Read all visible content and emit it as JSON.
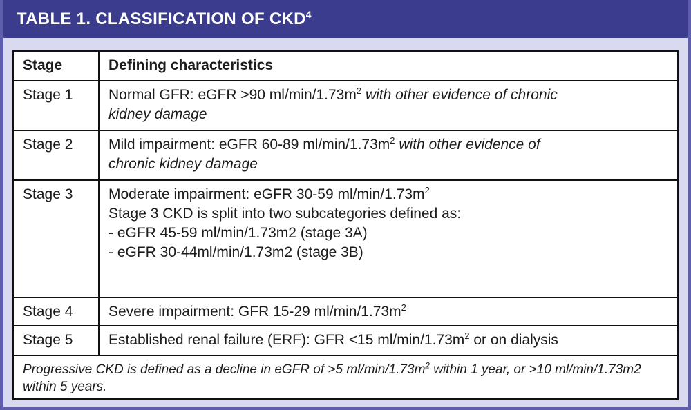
{
  "colors": {
    "banner_bg": "#3b3c8e",
    "frame": "#5e5eac",
    "page_bg": "#d9d9ef",
    "table_border": "#111111",
    "banner_text": "#ffffff"
  },
  "banner": {
    "title": "TABLE 1. CLASSIFICATION OF CKD",
    "superscript": "4"
  },
  "table": {
    "headers": [
      "Stage",
      "Defining characteristics"
    ],
    "rows": [
      {
        "stage": "Stage 1",
        "lines": [
          [
            {
              "t": "Normal GFR: eGFR >90 ml/min/1.73m"
            },
            {
              "t": "2",
              "sup": true
            },
            {
              "t": " ",
              "i": true
            },
            {
              "t": "with other evidence of chronic",
              "i": true
            }
          ],
          [
            {
              "t": "kidney damage",
              "i": true
            }
          ]
        ]
      },
      {
        "stage": "Stage 2",
        "lines": [
          [
            {
              "t": "Mild impairment: eGFR 60-89 ml/min/1.73m"
            },
            {
              "t": "2",
              "sup": true
            },
            {
              "t": " ",
              "i": true
            },
            {
              "t": "with other evidence of",
              "i": true
            }
          ],
          [
            {
              "t": "chronic kidney damage",
              "i": true
            }
          ]
        ]
      },
      {
        "stage": "Stage 3",
        "lines": [
          [
            {
              "t": "Moderate impairment: eGFR 30-59 ml/min/1.73m"
            },
            {
              "t": "2",
              "sup": true
            }
          ],
          [
            {
              "t": "Stage 3 CKD is split into two subcategories defined as:"
            }
          ],
          [
            {
              "t": "- eGFR 45-59 ml/min/1.73m2 (stage 3A)"
            }
          ],
          [
            {
              "t": "- eGFR 30-44ml/min/1.73m2 (stage 3B)"
            }
          ]
        ]
      },
      {
        "stage": "Stage 4",
        "lines": [
          [
            {
              "t": "Severe impairment: GFR 15-29 ml/min/1.73m"
            },
            {
              "t": "2",
              "sup": true
            }
          ]
        ]
      },
      {
        "stage": "Stage 5",
        "lines": [
          [
            {
              "t": "Established renal failure (ERF): GFR <15 ml/min/1.73m"
            },
            {
              "t": "2",
              "sup": true
            },
            {
              "t": " or on dialysis"
            }
          ]
        ]
      }
    ],
    "footnote": {
      "lines": [
        [
          {
            "t": "Progressive CKD is defined as a decline in eGFR of >5 ml/min/1.73m",
            "i": true
          },
          {
            "t": "2",
            "sup": true,
            "i": true
          },
          {
            "t": " within 1 year, or >10 ml/min/1.73m2",
            "i": true
          }
        ],
        [
          {
            "t": "within 5 years.",
            "i": true
          }
        ]
      ]
    }
  }
}
